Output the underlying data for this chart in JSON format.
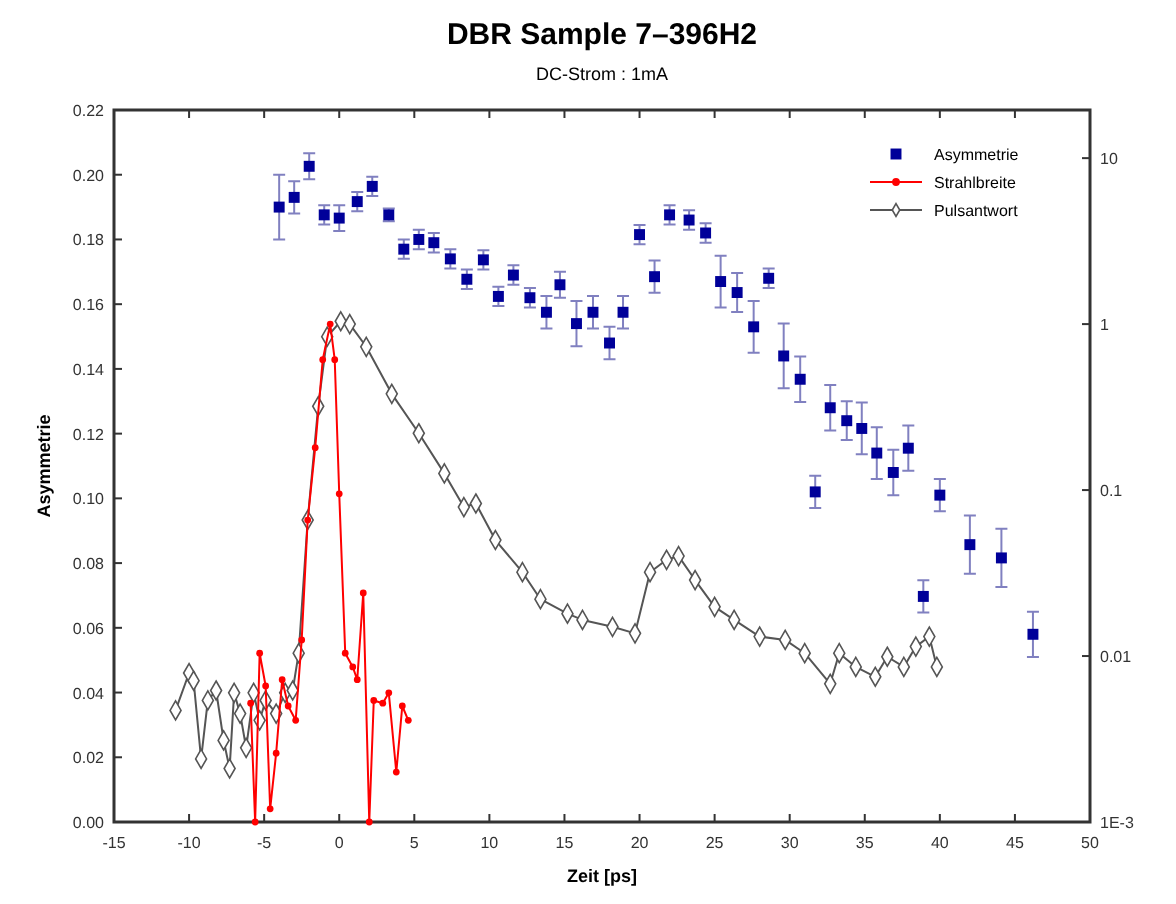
{
  "chart_data": {
    "type": "scatter",
    "title": "DBR Sample 7–396H2",
    "subtitle": "DC-Strom : 1mA",
    "xlabel": "Zeit [ps]",
    "ylabel": "Asymmetrie",
    "xlim": [
      -15,
      50
    ],
    "xticks": [
      -15,
      -10,
      -5,
      0,
      5,
      10,
      15,
      20,
      25,
      30,
      35,
      40,
      45,
      50
    ],
    "ylim": [
      0,
      0.22
    ],
    "yticks": [
      {
        "value": 0,
        "label": "0.00"
      },
      {
        "value": 0.02,
        "label": "0.02"
      },
      {
        "value": 0.04,
        "label": "0.04"
      },
      {
        "value": 0.06,
        "label": "0.06"
      },
      {
        "value": 0.08,
        "label": "0.08"
      },
      {
        "value": 0.1,
        "label": "0.10"
      },
      {
        "value": 0.12,
        "label": "0.12"
      },
      {
        "value": 0.14,
        "label": "0.14"
      },
      {
        "value": 0.16,
        "label": "0.16"
      },
      {
        "value": 0.18,
        "label": "0.18"
      },
      {
        "value": 0.2,
        "label": "0.20"
      },
      {
        "value": 0.22,
        "label": "0.22"
      }
    ],
    "y2lim": [
      0.001,
      19.5
    ],
    "y2ticks": [
      {
        "value": 0.001,
        "label": "1E-3"
      },
      0.01,
      0.1,
      1,
      10
    ],
    "log": "y2",
    "grid": false,
    "legend": "top right",
    "series": [
      {
        "name": "Asymmetrie",
        "marker": "square",
        "color": "#000099",
        "x": [
          -4,
          -3,
          -2,
          -1,
          0,
          1.2,
          2.2,
          3.3,
          4.3,
          5.3,
          6.3,
          7.4,
          8.5,
          9.6,
          10.6,
          11.6,
          12.7,
          13.8,
          14.7,
          15.8,
          16.9,
          18,
          18.9,
          20,
          21,
          22,
          23.3,
          24.4,
          25.4,
          26.5,
          27.6,
          28.6,
          29.6,
          30.7,
          31.7,
          32.7,
          33.8,
          34.8,
          35.8,
          36.9,
          37.9,
          38.9,
          40,
          42,
          44.1,
          46.2
        ],
        "values": [
          0.19,
          0.193,
          0.2026,
          0.1876,
          0.1866,
          0.1917,
          0.1964,
          0.1876,
          0.177,
          0.18,
          0.179,
          0.174,
          0.1677,
          0.1737,
          0.1624,
          0.169,
          0.162,
          0.1575,
          0.166,
          0.154,
          0.1575,
          0.148,
          0.1575,
          0.1815,
          0.1685,
          0.1876,
          0.186,
          0.182,
          0.167,
          0.1636,
          0.153,
          0.168,
          0.144,
          0.1368,
          0.102,
          0.128,
          0.124,
          0.1216,
          0.114,
          0.108,
          0.1155,
          0.0697,
          0.101,
          0.0857,
          0.0816,
          0.058
        ],
        "errors": [
          0.01,
          0.005,
          0.004,
          0.003,
          0.004,
          0.003,
          0.003,
          0.002,
          0.003,
          0.003,
          0.003,
          0.003,
          0.003,
          0.003,
          0.003,
          0.003,
          0.003,
          0.005,
          0.004,
          0.007,
          0.005,
          0.005,
          0.005,
          0.003,
          0.005,
          0.003,
          0.003,
          0.003,
          0.008,
          0.006,
          0.008,
          0.003,
          0.01,
          0.007,
          0.005,
          0.007,
          0.006,
          0.008,
          0.008,
          0.007,
          0.007,
          0.005,
          0.005,
          0.009,
          0.009,
          0.007
        ]
      },
      {
        "name": "Strahlbreite",
        "type": "line",
        "axis": "y2",
        "marker": "circle",
        "line_style": "solid",
        "color": "#ff0000",
        "x": [
          -5.9,
          -5.6,
          -5.3,
          -4.9,
          -4.6,
          -4.2,
          -3.8,
          -3.4,
          -2.9,
          -2.5,
          -2.1,
          -1.6,
          -1.1,
          -0.6,
          -0.3,
          0,
          0.4,
          0.9,
          1.2,
          1.6,
          2,
          2.3,
          2.9,
          3.3,
          3.8,
          4.2,
          4.6
        ],
        "values": [
          0.0052,
          0.001,
          0.0104,
          0.0066,
          0.0012,
          0.0026,
          0.0072,
          0.005,
          0.0041,
          0.0125,
          0.066,
          0.18,
          0.61,
          1,
          0.61,
          0.095,
          0.0104,
          0.0086,
          0.0072,
          0.024,
          0.001,
          0.0054,
          0.0052,
          0.006,
          0.002,
          0.005,
          0.0041
        ]
      },
      {
        "name": "Pulsantwort",
        "type": "line",
        "axis": "y2",
        "marker": "diamond",
        "line_style": "solid",
        "color": "#555555",
        "x": [
          -10.9,
          -10,
          -9.7,
          -9.2,
          -8.75,
          -8.2,
          -7.7,
          -7.3,
          -7,
          -6.6,
          -6.2,
          -5.7,
          -5.3,
          -4.9,
          -4.2,
          -3.6,
          -3.1,
          -2.7,
          -2.1,
          -1.4,
          -0.8,
          0.1,
          0.7,
          1.8,
          3.5,
          5.3,
          7,
          8.3,
          9.1,
          10.4,
          12.2,
          13.4,
          15.2,
          16.2,
          18.2,
          19.7,
          20.7,
          21.8,
          22.6,
          23.7,
          25,
          26.3,
          28,
          29.7,
          31,
          32.7,
          33.3,
          34.4,
          35.7,
          36.5,
          37.6,
          38.4,
          39.3,
          39.8
        ],
        "values": [
          0.0047,
          0.0079,
          0.0071,
          0.0024,
          0.0054,
          0.0062,
          0.0031,
          0.0021,
          0.006,
          0.0045,
          0.0028,
          0.006,
          0.0041,
          0.0054,
          0.0045,
          0.006,
          0.0062,
          0.0104,
          0.066,
          0.32,
          0.84,
          1.04,
          1,
          0.73,
          0.38,
          0.22,
          0.126,
          0.079,
          0.083,
          0.05,
          0.032,
          0.022,
          0.018,
          0.0165,
          0.015,
          0.0137,
          0.032,
          0.038,
          0.04,
          0.0287,
          0.0198,
          0.0165,
          0.0131,
          0.0125,
          0.0104,
          0.0068,
          0.0104,
          0.0086,
          0.0075,
          0.0099,
          0.0086,
          0.0114,
          0.0131,
          0.0086
        ]
      }
    ]
  }
}
